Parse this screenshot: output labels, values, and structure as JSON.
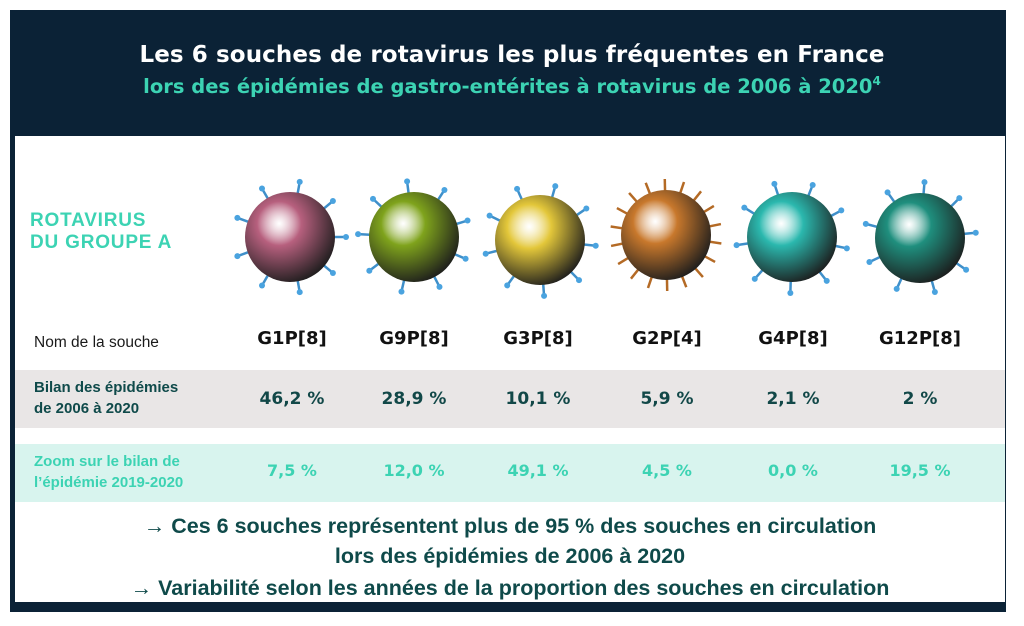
{
  "header": {
    "title": "Les 6 souches de rotavirus les plus fréquentes en France",
    "subtitle": "lors des épidémies de gastro-entérites à rotavirus de 2006 à 2020",
    "subtitle_ref": "4"
  },
  "group_label": {
    "line1": "ROTAVIRUS",
    "line2": "DU GROUPE A"
  },
  "row_labels": {
    "name": "Nom de la souche",
    "bilan_line1": "Bilan des épidémies",
    "bilan_line2": "de 2006 à 2020",
    "zoom_line1": "Zoom sur le bilan de",
    "zoom_line2": "l’épidémie 2019-2020"
  },
  "strains": [
    {
      "name": "G1P[8]",
      "bilan": "46,2 %",
      "zoom": "7,5 %",
      "color": "#b7607e"
    },
    {
      "name": "G9P[8]",
      "bilan": "28,9 %",
      "zoom": "12,0 %",
      "color": "#7fa31c"
    },
    {
      "name": "G3P[8]",
      "bilan": "10,1 %",
      "zoom": "49,1 %",
      "color": "#e3c73a"
    },
    {
      "name": "G2P[4]",
      "bilan": "5,9 %",
      "zoom": "4,5 %",
      "color": "#c8782c"
    },
    {
      "name": "G4P[8]",
      "bilan": "2,1 %",
      "zoom": "0,0 %",
      "color": "#2bb8ae"
    },
    {
      "name": "G12P[8]",
      "bilan": "2 %",
      "zoom": "19,5 %",
      "color": "#1f8f7e"
    }
  ],
  "notes": {
    "line1": "→ Ces 6 souches représentent plus de 95 % des souches en circulation",
    "line2": "lors des épidémies de 2006 à 2020",
    "line3": "→ Variabilité selon les années de la proportion des souches en circulation"
  },
  "colors": {
    "navy": "#0b2236",
    "teal": "#3cd3b3",
    "dark_teal": "#0f4a4a",
    "row_grey": "#e9e6e6",
    "row_mint": "#d8f4ee"
  }
}
